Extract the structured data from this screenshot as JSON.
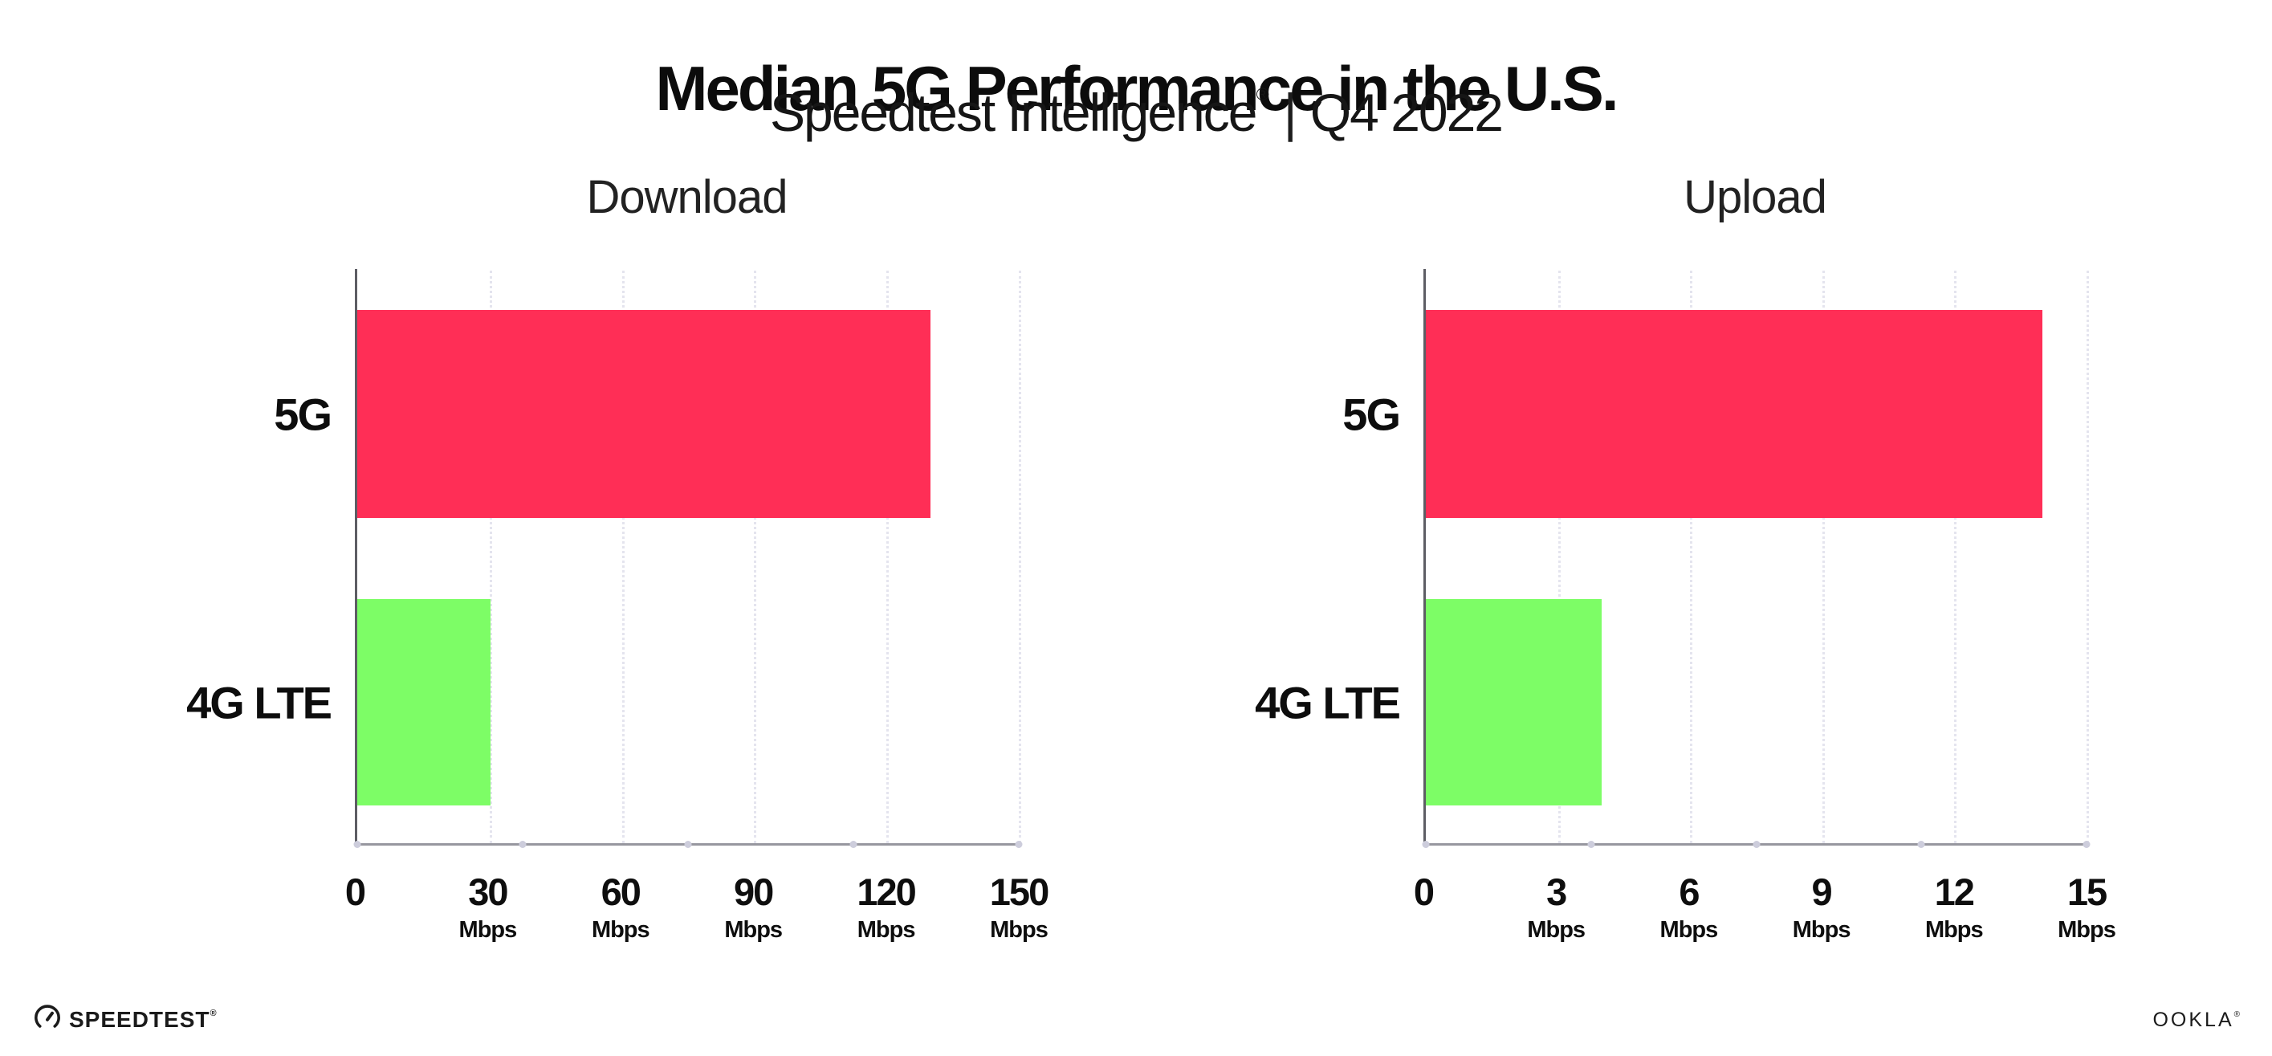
{
  "header": {
    "title": "Median 5G Performance in the U.S.",
    "subtitle_product": "Speedtest Intelligence",
    "subtitle_reg": "®",
    "subtitle_separator": "|",
    "subtitle_period": "Q4 2022"
  },
  "colors": {
    "bar_5g": "#ff2e56",
    "bar_4g_lte": "#7dfd66",
    "gridline": "#e4e4ee",
    "y_axis": "#5d5d64",
    "x_axis": "#97979f"
  },
  "charts": [
    {
      "title": "Download",
      "axis": {
        "min": 0,
        "max": 150,
        "unit": "Mbps"
      },
      "ticks": [
        {
          "label": "0",
          "unit": ""
        },
        {
          "label": "30",
          "unit": "Mbps"
        },
        {
          "label": "60",
          "unit": "Mbps"
        },
        {
          "label": "90",
          "unit": "Mbps"
        },
        {
          "label": "120",
          "unit": "Mbps"
        },
        {
          "label": "150",
          "unit": "Mbps"
        }
      ],
      "bars": [
        {
          "label": "5G",
          "value": 130,
          "color": "#ff2e56"
        },
        {
          "label": "4G LTE",
          "value": 30.3,
          "color": "#7dfd66"
        }
      ]
    },
    {
      "title": "Upload",
      "axis": {
        "min": 0,
        "max": 15,
        "unit": "Mbps"
      },
      "ticks": [
        {
          "label": "0",
          "unit": ""
        },
        {
          "label": "3",
          "unit": "Mbps"
        },
        {
          "label": "6",
          "unit": "Mbps"
        },
        {
          "label": "9",
          "unit": "Mbps"
        },
        {
          "label": "12",
          "unit": "Mbps"
        },
        {
          "label": "15",
          "unit": "Mbps"
        }
      ],
      "bars": [
        {
          "label": "5G",
          "value": 14,
          "color": "#ff2e56"
        },
        {
          "label": "4G LTE",
          "value": 4,
          "color": "#7dfd66"
        }
      ]
    }
  ],
  "chart_data": [
    {
      "type": "bar",
      "orientation": "horizontal",
      "title": "Download",
      "categories": [
        "5G",
        "4G LTE"
      ],
      "values": [
        130,
        30.3
      ],
      "xlabel": "Mbps",
      "ylabel": "",
      "xlim": [
        0,
        150
      ],
      "xticks": [
        0,
        30,
        60,
        90,
        120,
        150
      ],
      "tick_unit": "Mbps",
      "grid": "vertical-dotted",
      "legend": "none",
      "bar_colors": [
        "#ff2e56",
        "#7dfd66"
      ]
    },
    {
      "type": "bar",
      "orientation": "horizontal",
      "title": "Upload",
      "categories": [
        "5G",
        "4G LTE"
      ],
      "values": [
        14,
        4
      ],
      "xlabel": "Mbps",
      "ylabel": "",
      "xlim": [
        0,
        15
      ],
      "xticks": [
        0,
        3,
        6,
        9,
        12,
        15
      ],
      "tick_unit": "Mbps",
      "grid": "vertical-dotted",
      "legend": "none",
      "bar_colors": [
        "#ff2e56",
        "#7dfd66"
      ]
    }
  ],
  "footer": {
    "speedtest_logo_text": "SPEEDTEST",
    "speedtest_mark": "®",
    "ookla_logo_text": "OOKLA",
    "ookla_mark": "®"
  }
}
